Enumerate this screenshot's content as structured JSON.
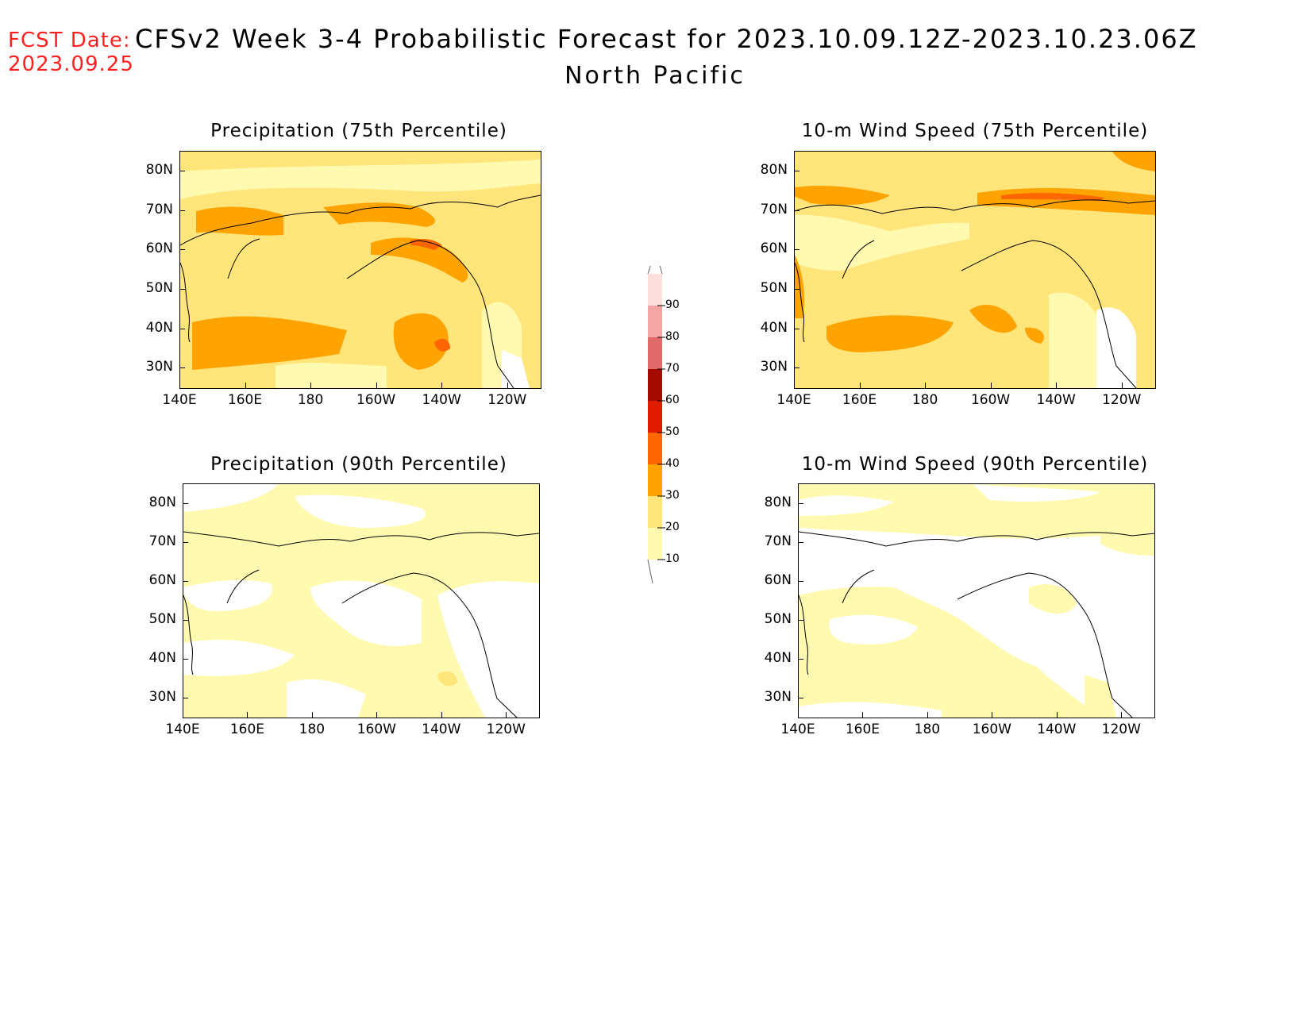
{
  "header": {
    "fcst_label": "FCST Date:",
    "fcst_date": "2023.09.25",
    "title": "CFSv2 Week 3-4 Probabilistic Forecast for 2023.10.09.12Z-2023.10.23.06Z",
    "subtitle": "North Pacific"
  },
  "axes": {
    "lat_ticks": [
      "80N",
      "70N",
      "60N",
      "50N",
      "40N",
      "30N"
    ],
    "lon_ticks": [
      "140E",
      "160E",
      "180",
      "160W",
      "140W",
      "120W"
    ]
  },
  "panels": [
    {
      "id": "precip75",
      "title": "Precipitation (75th Percentile)"
    },
    {
      "id": "wind75",
      "title": "10-m Wind Speed (75th Percentile)"
    },
    {
      "id": "precip90",
      "title": "Precipitation (90th Percentile)"
    },
    {
      "id": "wind90",
      "title": "10-m Wind Speed (90th Percentile)"
    }
  ],
  "legend": {
    "levels": [
      "10",
      "20",
      "30",
      "40",
      "50",
      "60",
      "70",
      "80",
      "90"
    ],
    "colors": [
      "#fffab0",
      "#ffe57a",
      "#ffa300",
      "#ff6600",
      "#e11b00",
      "#a50a00",
      "#e06a6a",
      "#f4a6a6",
      "#ffdede"
    ]
  }
}
